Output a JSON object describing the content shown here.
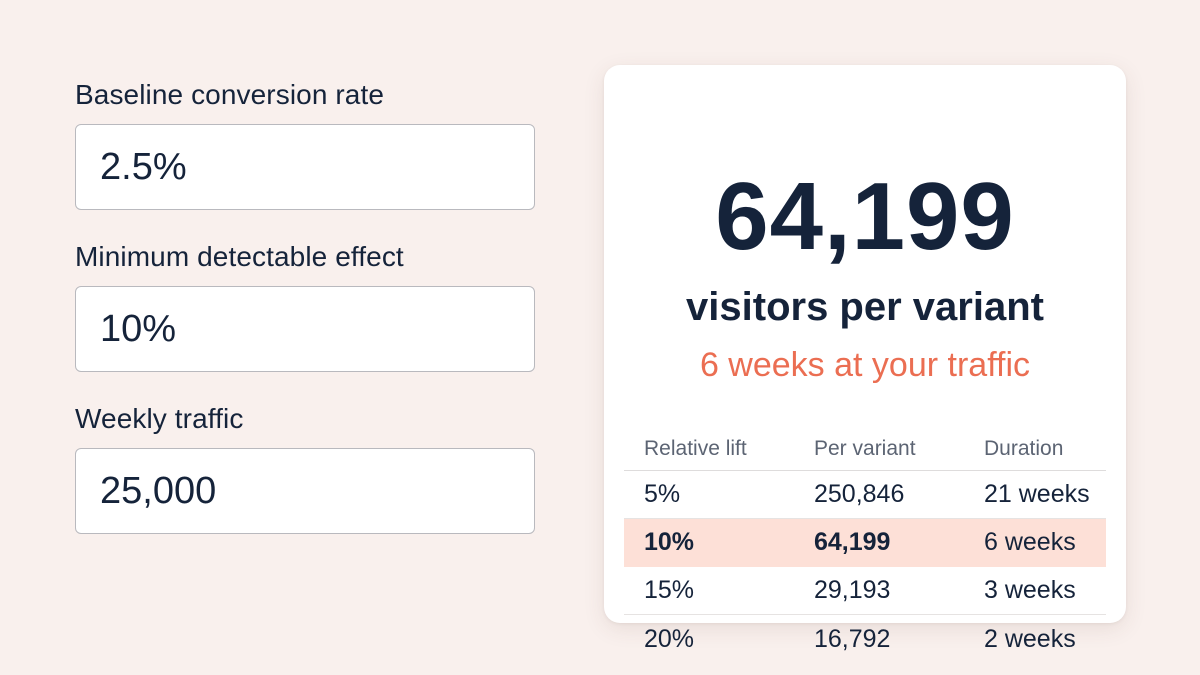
{
  "form": {
    "baseline": {
      "label": "Baseline conversion rate",
      "value": "2.5%"
    },
    "mde": {
      "label": "Minimum detectable effect",
      "value": "10%"
    },
    "traffic": {
      "label": "Weekly traffic",
      "value": "25,000"
    }
  },
  "result": {
    "big_number": "64,199",
    "headline": "visitors per variant",
    "subline": "6 weeks at your traffic",
    "accent_color": "#eb6e52",
    "highlight_color": "#fde0d7"
  },
  "table": {
    "headers": [
      "Relative lift",
      "Per variant",
      "Duration"
    ],
    "rows": [
      {
        "lift": "5%",
        "per_variant": "250,846",
        "duration": "21 weeks"
      },
      {
        "lift": "10%",
        "per_variant": "64,199",
        "duration": "6 weeks",
        "selected": true
      },
      {
        "lift": "15%",
        "per_variant": "29,193",
        "duration": "3 weeks"
      },
      {
        "lift": "20%",
        "per_variant": "16,792",
        "duration": "2 weeks"
      }
    ]
  }
}
